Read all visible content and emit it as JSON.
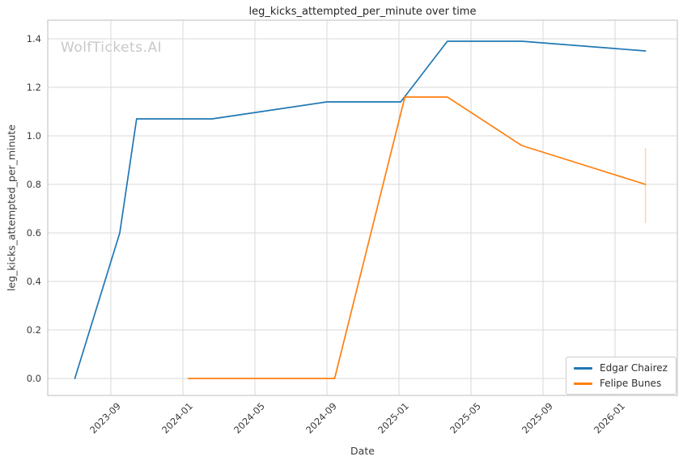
{
  "watermark": "WolfTickets.AI",
  "chart_data": {
    "type": "line",
    "title": "leg_kicks_attempted_per_minute over time",
    "xlabel": "Date",
    "ylabel": "leg_kicks_attempted_per_minute",
    "x_tick_labels": [
      "2023-09",
      "2024-01",
      "2024-05",
      "2024-09",
      "2025-01",
      "2025-05",
      "2025-09",
      "2026-01"
    ],
    "y_tick_labels": [
      "0.0",
      "0.2",
      "0.4",
      "0.6",
      "0.8",
      "1.0",
      "1.2",
      "1.4"
    ],
    "ylim": [
      -0.07,
      1.48
    ],
    "grid": true,
    "legend_position": "lower right",
    "colors": {
      "background": "#ffffff",
      "grid": "#d9d9d9",
      "spine": "#c9c9c9",
      "tick_text": "#3b3b3b",
      "series_blue": "#1f77b4",
      "series_orange": "#ff7f0e"
    },
    "series": [
      {
        "name": "Edgar Chairez",
        "color": "#1f77b4",
        "points": [
          [
            "2023-07-01",
            0.0
          ],
          [
            "2023-09-16",
            0.6
          ],
          [
            "2023-10-14",
            1.07
          ],
          [
            "2024-02-20",
            1.07
          ],
          [
            "2024-09-01",
            1.14
          ],
          [
            "2025-01-04",
            1.14
          ],
          [
            "2025-03-22",
            1.39
          ],
          [
            "2025-07-26",
            1.39
          ],
          [
            "2026-02-22",
            1.35
          ]
        ]
      },
      {
        "name": "Felipe Bunes",
        "color": "#ff7f0e",
        "points": [
          [
            "2024-01-10",
            0.0
          ],
          [
            "2024-09-14",
            0.0
          ],
          [
            "2025-01-11",
            1.16
          ],
          [
            "2025-03-22",
            1.16
          ],
          [
            "2025-07-26",
            0.96
          ],
          [
            "2026-02-22",
            0.8
          ]
        ],
        "error_bar_last_point": {
          "low": 0.64,
          "high": 0.95
        }
      }
    ]
  },
  "legend": {
    "items": [
      {
        "label": "Edgar Chairez",
        "color": "#1f77b4"
      },
      {
        "label": "Felipe Bunes",
        "color": "#ff7f0e"
      }
    ]
  }
}
